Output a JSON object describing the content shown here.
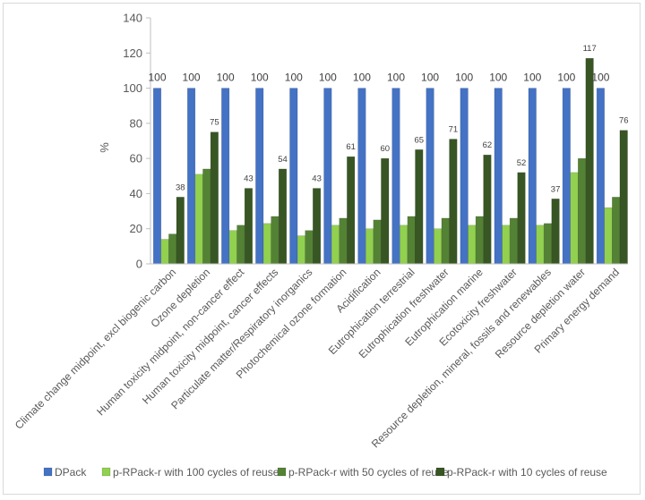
{
  "chart_data": {
    "type": "bar",
    "title": "",
    "xlabel": "",
    "ylabel": "%",
    "ylim": [
      0,
      140
    ],
    "yticks": [
      0,
      20,
      40,
      60,
      80,
      100,
      120,
      140
    ],
    "grid": false,
    "legend_position": "bottom",
    "categories": [
      "Climate change midpoint, excl biogenic carbon",
      "Ozone depletion",
      "Human toxicity midpoint, non-cancer effect",
      "Human toxicity midpoint, cancer effects",
      "Particulate matter/Respiratory inorganics",
      "Photochemical ozone formation",
      "Acidification",
      "Eutrophication terrestrial",
      "Eutrophication freshwater",
      "Eutrophication marine",
      "Ecotoxicity freshwater",
      "Resource depletion, mineral, fossils and renewables",
      "Resource depletion water",
      "Primary energy demand"
    ],
    "series": [
      {
        "name": "DPack",
        "color": "#4472c4",
        "labeled": true,
        "values": [
          100,
          100,
          100,
          100,
          100,
          100,
          100,
          100,
          100,
          100,
          100,
          100,
          100,
          100
        ]
      },
      {
        "name": "p-RPack-r with 100 cycles of reuse",
        "color": "#92d050",
        "labeled": false,
        "values": [
          14,
          51,
          19,
          23,
          16,
          22,
          20,
          22,
          20,
          22,
          22,
          22,
          52,
          32
        ]
      },
      {
        "name": "p-RPack-r with 50 cycles of reuse",
        "color": "#548235",
        "labeled": false,
        "values": [
          17,
          54,
          22,
          27,
          19,
          26,
          25,
          27,
          26,
          27,
          26,
          23,
          60,
          38
        ]
      },
      {
        "name": "p-RPack-r with 10 cycles of reuse",
        "color": "#375623",
        "labeled": true,
        "values": [
          38,
          75,
          43,
          54,
          43,
          61,
          60,
          65,
          71,
          62,
          52,
          37,
          117,
          76
        ]
      }
    ]
  }
}
